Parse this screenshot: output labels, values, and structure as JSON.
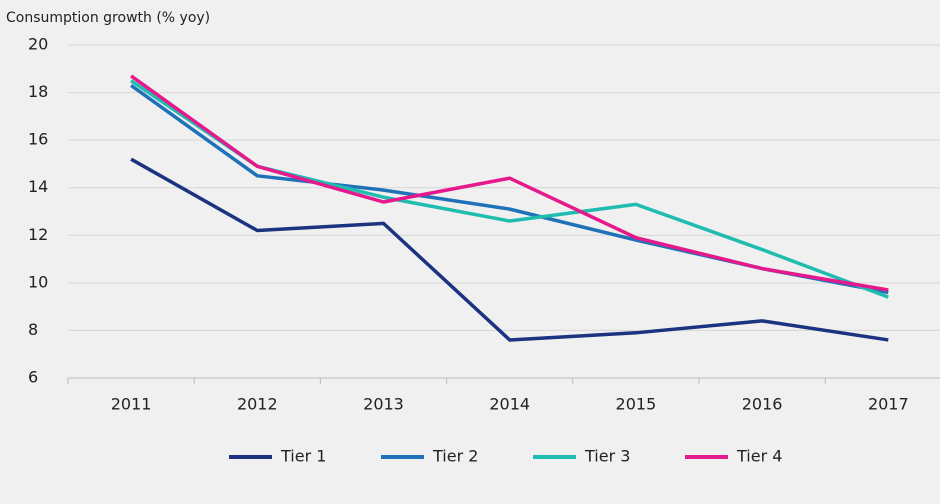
{
  "chart_data": {
    "type": "line",
    "y_label": "Consumption growth (% yoy)",
    "categories": [
      "2011",
      "2012",
      "2013",
      "2014",
      "2015",
      "2016",
      "2017"
    ],
    "series": [
      {
        "name": "Tier 1",
        "color": "#1b3380",
        "values": [
          15.2,
          12.2,
          12.5,
          7.6,
          7.9,
          8.4,
          7.6
        ]
      },
      {
        "name": "Tier 2",
        "color": "#1f72b8",
        "values": [
          18.3,
          14.5,
          13.9,
          13.1,
          11.8,
          10.6,
          9.6
        ]
      },
      {
        "name": "Tier 3",
        "color": "#1fbcb0",
        "values": [
          18.5,
          14.9,
          13.6,
          12.6,
          13.3,
          11.4,
          9.4
        ]
      },
      {
        "name": "Tier 4",
        "color": "#e6198c",
        "values": [
          18.7,
          14.9,
          13.4,
          14.4,
          11.9,
          10.6,
          9.7
        ]
      }
    ],
    "ylim": [
      6,
      20
    ],
    "yticks": [
      6,
      8,
      10,
      12,
      14,
      16,
      18,
      20
    ],
    "grid": true
  }
}
